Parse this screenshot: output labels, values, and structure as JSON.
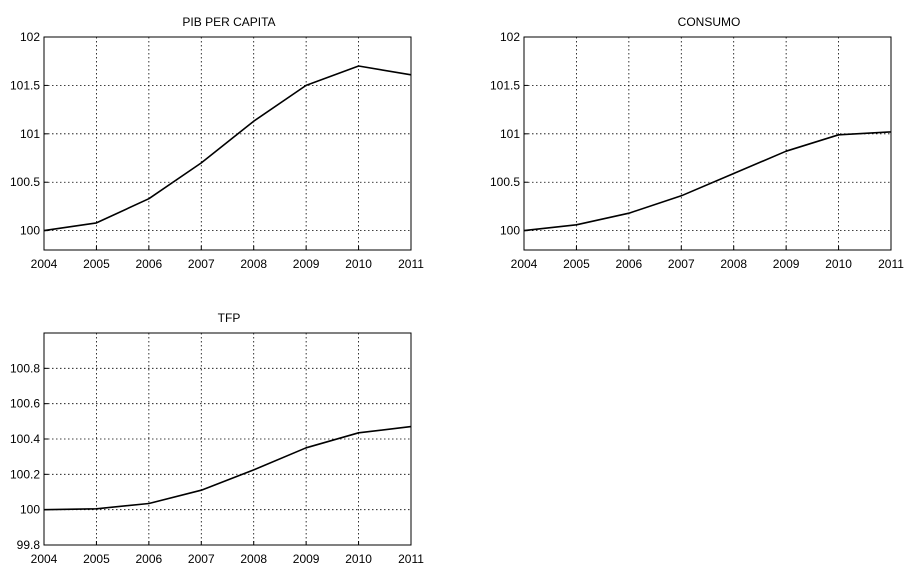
{
  "chart_data": [
    {
      "type": "line",
      "title": "PIB PER CAPITA",
      "xlabel": "",
      "ylabel": "",
      "x": [
        2004,
        2005,
        2006,
        2007,
        2008,
        2009,
        2010,
        2011
      ],
      "series": [
        {
          "values": [
            100.0,
            100.08,
            100.33,
            100.7,
            101.13,
            101.5,
            101.7,
            101.61
          ]
        }
      ],
      "xlim": [
        2004,
        2011
      ],
      "ylim": [
        99.8,
        102
      ],
      "xticks": [
        "2004",
        "2005",
        "2006",
        "2007",
        "2008",
        "2009",
        "2010",
        "2011"
      ],
      "yticks": [
        "100",
        "100.5",
        "101",
        "101.5",
        "102"
      ],
      "grid": true,
      "legend": "none"
    },
    {
      "type": "line",
      "title": "CONSUMO",
      "xlabel": "",
      "ylabel": "",
      "x": [
        2004,
        2005,
        2006,
        2007,
        2008,
        2009,
        2010,
        2011
      ],
      "series": [
        {
          "values": [
            100.0,
            100.06,
            100.18,
            100.36,
            100.59,
            100.82,
            100.99,
            101.02
          ]
        }
      ],
      "xlim": [
        2004,
        2011
      ],
      "ylim": [
        99.8,
        102
      ],
      "xticks": [
        "2004",
        "2005",
        "2006",
        "2007",
        "2008",
        "2009",
        "2010",
        "2011"
      ],
      "yticks": [
        "100",
        "100.5",
        "101",
        "101.5",
        "102"
      ],
      "grid": true,
      "legend": "none"
    },
    {
      "type": "line",
      "title": "TFP",
      "xlabel": "",
      "ylabel": "",
      "x": [
        2004,
        2005,
        2006,
        2007,
        2008,
        2009,
        2010,
        2011
      ],
      "series": [
        {
          "values": [
            100.0,
            100.005,
            100.035,
            100.11,
            100.225,
            100.35,
            100.435,
            100.47
          ]
        }
      ],
      "xlim": [
        2004,
        2011
      ],
      "ylim": [
        99.8,
        101.0
      ],
      "xticks": [
        "2004",
        "2005",
        "2006",
        "2007",
        "2008",
        "2009",
        "2010",
        "2011"
      ],
      "yticks": [
        "99.8",
        "100",
        "100.2",
        "100.4",
        "100.6",
        "100.8"
      ],
      "grid": true,
      "legend": "none"
    }
  ]
}
